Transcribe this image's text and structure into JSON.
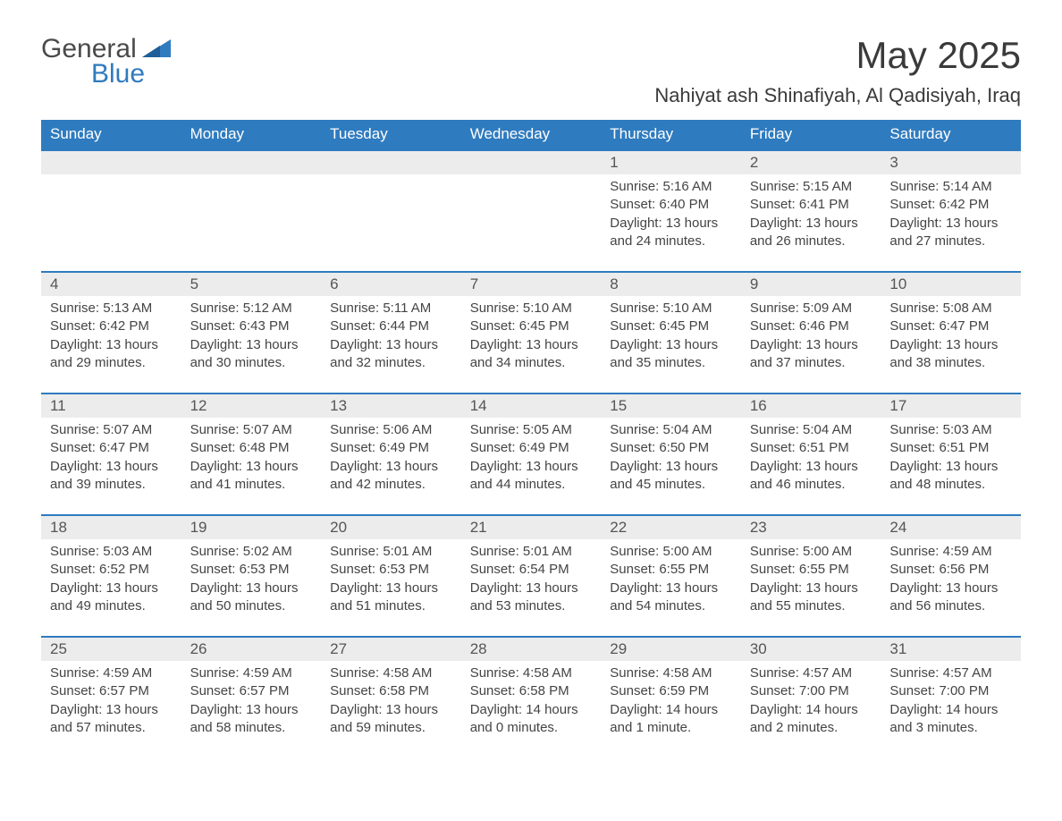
{
  "logo": {
    "text1": "General",
    "text2": "Blue"
  },
  "title": {
    "month": "May 2025",
    "location": "Nahiyat ash Shinafiyah, Al Qadisiyah, Iraq"
  },
  "colors": {
    "brand_blue": "#2f7bbf",
    "header_text": "#ffffff",
    "daynum_bg": "#ececec",
    "body_text": "#444444",
    "page_bg": "#ffffff"
  },
  "calendar": {
    "day_labels": [
      "Sunday",
      "Monday",
      "Tuesday",
      "Wednesday",
      "Thursday",
      "Friday",
      "Saturday"
    ],
    "weeks": [
      {
        "daynums": [
          "",
          "",
          "",
          "",
          "1",
          "2",
          "3"
        ],
        "cells": [
          {
            "lines": []
          },
          {
            "lines": []
          },
          {
            "lines": []
          },
          {
            "lines": []
          },
          {
            "lines": [
              "Sunrise: 5:16 AM",
              "Sunset: 6:40 PM",
              "Daylight: 13 hours",
              "and 24 minutes."
            ]
          },
          {
            "lines": [
              "Sunrise: 5:15 AM",
              "Sunset: 6:41 PM",
              "Daylight: 13 hours",
              "and 26 minutes."
            ]
          },
          {
            "lines": [
              "Sunrise: 5:14 AM",
              "Sunset: 6:42 PM",
              "Daylight: 13 hours",
              "and 27 minutes."
            ]
          }
        ]
      },
      {
        "daynums": [
          "4",
          "5",
          "6",
          "7",
          "8",
          "9",
          "10"
        ],
        "cells": [
          {
            "lines": [
              "Sunrise: 5:13 AM",
              "Sunset: 6:42 PM",
              "Daylight: 13 hours",
              "and 29 minutes."
            ]
          },
          {
            "lines": [
              "Sunrise: 5:12 AM",
              "Sunset: 6:43 PM",
              "Daylight: 13 hours",
              "and 30 minutes."
            ]
          },
          {
            "lines": [
              "Sunrise: 5:11 AM",
              "Sunset: 6:44 PM",
              "Daylight: 13 hours",
              "and 32 minutes."
            ]
          },
          {
            "lines": [
              "Sunrise: 5:10 AM",
              "Sunset: 6:45 PM",
              "Daylight: 13 hours",
              "and 34 minutes."
            ]
          },
          {
            "lines": [
              "Sunrise: 5:10 AM",
              "Sunset: 6:45 PM",
              "Daylight: 13 hours",
              "and 35 minutes."
            ]
          },
          {
            "lines": [
              "Sunrise: 5:09 AM",
              "Sunset: 6:46 PM",
              "Daylight: 13 hours",
              "and 37 minutes."
            ]
          },
          {
            "lines": [
              "Sunrise: 5:08 AM",
              "Sunset: 6:47 PM",
              "Daylight: 13 hours",
              "and 38 minutes."
            ]
          }
        ]
      },
      {
        "daynums": [
          "11",
          "12",
          "13",
          "14",
          "15",
          "16",
          "17"
        ],
        "cells": [
          {
            "lines": [
              "Sunrise: 5:07 AM",
              "Sunset: 6:47 PM",
              "Daylight: 13 hours",
              "and 39 minutes."
            ]
          },
          {
            "lines": [
              "Sunrise: 5:07 AM",
              "Sunset: 6:48 PM",
              "Daylight: 13 hours",
              "and 41 minutes."
            ]
          },
          {
            "lines": [
              "Sunrise: 5:06 AM",
              "Sunset: 6:49 PM",
              "Daylight: 13 hours",
              "and 42 minutes."
            ]
          },
          {
            "lines": [
              "Sunrise: 5:05 AM",
              "Sunset: 6:49 PM",
              "Daylight: 13 hours",
              "and 44 minutes."
            ]
          },
          {
            "lines": [
              "Sunrise: 5:04 AM",
              "Sunset: 6:50 PM",
              "Daylight: 13 hours",
              "and 45 minutes."
            ]
          },
          {
            "lines": [
              "Sunrise: 5:04 AM",
              "Sunset: 6:51 PM",
              "Daylight: 13 hours",
              "and 46 minutes."
            ]
          },
          {
            "lines": [
              "Sunrise: 5:03 AM",
              "Sunset: 6:51 PM",
              "Daylight: 13 hours",
              "and 48 minutes."
            ]
          }
        ]
      },
      {
        "daynums": [
          "18",
          "19",
          "20",
          "21",
          "22",
          "23",
          "24"
        ],
        "cells": [
          {
            "lines": [
              "Sunrise: 5:03 AM",
              "Sunset: 6:52 PM",
              "Daylight: 13 hours",
              "and 49 minutes."
            ]
          },
          {
            "lines": [
              "Sunrise: 5:02 AM",
              "Sunset: 6:53 PM",
              "Daylight: 13 hours",
              "and 50 minutes."
            ]
          },
          {
            "lines": [
              "Sunrise: 5:01 AM",
              "Sunset: 6:53 PM",
              "Daylight: 13 hours",
              "and 51 minutes."
            ]
          },
          {
            "lines": [
              "Sunrise: 5:01 AM",
              "Sunset: 6:54 PM",
              "Daylight: 13 hours",
              "and 53 minutes."
            ]
          },
          {
            "lines": [
              "Sunrise: 5:00 AM",
              "Sunset: 6:55 PM",
              "Daylight: 13 hours",
              "and 54 minutes."
            ]
          },
          {
            "lines": [
              "Sunrise: 5:00 AM",
              "Sunset: 6:55 PM",
              "Daylight: 13 hours",
              "and 55 minutes."
            ]
          },
          {
            "lines": [
              "Sunrise: 4:59 AM",
              "Sunset: 6:56 PM",
              "Daylight: 13 hours",
              "and 56 minutes."
            ]
          }
        ]
      },
      {
        "daynums": [
          "25",
          "26",
          "27",
          "28",
          "29",
          "30",
          "31"
        ],
        "cells": [
          {
            "lines": [
              "Sunrise: 4:59 AM",
              "Sunset: 6:57 PM",
              "Daylight: 13 hours",
              "and 57 minutes."
            ]
          },
          {
            "lines": [
              "Sunrise: 4:59 AM",
              "Sunset: 6:57 PM",
              "Daylight: 13 hours",
              "and 58 minutes."
            ]
          },
          {
            "lines": [
              "Sunrise: 4:58 AM",
              "Sunset: 6:58 PM",
              "Daylight: 13 hours",
              "and 59 minutes."
            ]
          },
          {
            "lines": [
              "Sunrise: 4:58 AM",
              "Sunset: 6:58 PM",
              "Daylight: 14 hours",
              "and 0 minutes."
            ]
          },
          {
            "lines": [
              "Sunrise: 4:58 AM",
              "Sunset: 6:59 PM",
              "Daylight: 14 hours",
              "and 1 minute."
            ]
          },
          {
            "lines": [
              "Sunrise: 4:57 AM",
              "Sunset: 7:00 PM",
              "Daylight: 14 hours",
              "and 2 minutes."
            ]
          },
          {
            "lines": [
              "Sunrise: 4:57 AM",
              "Sunset: 7:00 PM",
              "Daylight: 14 hours",
              "and 3 minutes."
            ]
          }
        ]
      }
    ]
  }
}
